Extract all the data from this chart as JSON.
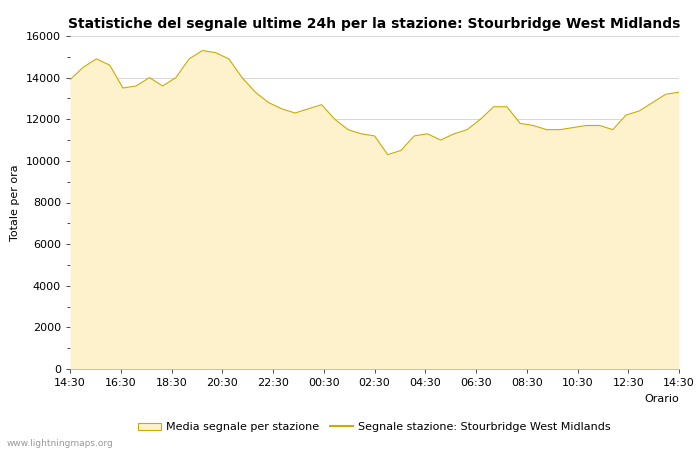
{
  "title": "Statistiche del segnale ultime 24h per la stazione: Stourbridge West Midlands",
  "xlabel": "Orario",
  "ylabel": "Totale per ora",
  "x_ticks": [
    "14:30",
    "16:30",
    "18:30",
    "20:30",
    "22:30",
    "00:30",
    "02:30",
    "04:30",
    "06:30",
    "08:30",
    "10:30",
    "12:30",
    "14:30"
  ],
  "ylim": [
    0,
    16000
  ],
  "yticks": [
    0,
    2000,
    4000,
    6000,
    8000,
    10000,
    12000,
    14000,
    16000
  ],
  "fill_color": "#fdf2cc",
  "line_color": "#ccaa00",
  "bg_color": "#ffffff",
  "grid_color": "#c8c8c8",
  "legend_fill_label": "Media segnale per stazione",
  "legend_line_label": "Segnale stazione: Stourbridge West Midlands",
  "watermark": "www.lightningmaps.org",
  "area_values": [
    13900,
    14500,
    14900,
    14600,
    13500,
    13600,
    14000,
    13600,
    14000,
    14900,
    15300,
    15200,
    14900,
    14000,
    13300,
    12800,
    12500,
    12300,
    12500,
    12700,
    12000,
    11500,
    11300,
    11200,
    10300,
    10500,
    11200,
    11300,
    11000,
    11300,
    11500,
    12000,
    12600,
    12600,
    11800,
    11700,
    11500,
    11500,
    11600,
    11700,
    11700,
    11500,
    12200,
    12400,
    12800,
    13200,
    13300
  ],
  "line_values": [
    13900,
    14500,
    14900,
    14600,
    13500,
    13600,
    14000,
    13600,
    14000,
    14900,
    15300,
    15200,
    14900,
    14000,
    13300,
    12800,
    12500,
    12300,
    12500,
    12700,
    12000,
    11500,
    11300,
    11200,
    10300,
    10500,
    11200,
    11300,
    11000,
    11300,
    11500,
    12000,
    12600,
    12600,
    11800,
    11700,
    11500,
    11500,
    11600,
    11700,
    11700,
    11500,
    12200,
    12400,
    12800,
    13200,
    13300
  ],
  "title_fontsize": 10,
  "label_fontsize": 8,
  "tick_fontsize": 8
}
